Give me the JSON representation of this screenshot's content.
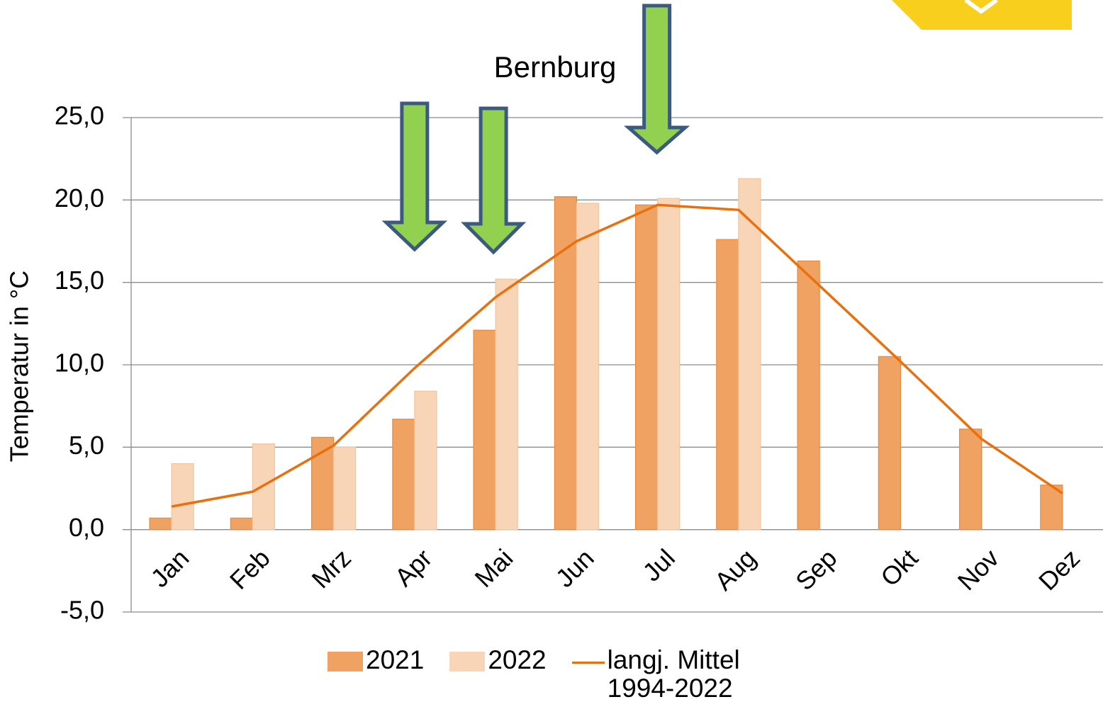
{
  "chart_data": {
    "type": "bar",
    "annotation": "Bernburg",
    "y_label": "Temperatur in °C",
    "categories": [
      "Jan",
      "Feb",
      "Mrz",
      "Apr",
      "Mai",
      "Jun",
      "Jul",
      "Aug",
      "Sep",
      "Okt",
      "Nov",
      "Dez"
    ],
    "series": [
      {
        "name": "2021",
        "type": "bar",
        "color": "#f0a262",
        "values": [
          0.7,
          0.7,
          5.6,
          6.7,
          12.1,
          20.2,
          19.7,
          17.6,
          16.3,
          10.5,
          6.1,
          2.7
        ]
      },
      {
        "name": "2022",
        "type": "bar",
        "color": "#f9d5b8",
        "values": [
          4.0,
          5.2,
          5.0,
          8.4,
          15.2,
          19.8,
          20.1,
          21.3,
          null,
          null,
          null,
          null
        ]
      },
      {
        "name": "langj. Mittel\n1994-2022",
        "type": "line",
        "color": "#e8700f",
        "values": [
          1.4,
          2.3,
          5.1,
          9.8,
          14.1,
          17.5,
          19.7,
          19.4,
          14.8,
          10.2,
          5.5,
          2.2
        ]
      }
    ],
    "ylim": [
      -5,
      25
    ],
    "yticks": [
      {
        "value": -5,
        "label": "-5,0"
      },
      {
        "value": 0,
        "label": "0,0"
      },
      {
        "value": 5,
        "label": "5,0"
      },
      {
        "value": 10,
        "label": "10,0"
      },
      {
        "value": 15,
        "label": "15,0"
      },
      {
        "value": 20,
        "label": "20,0"
      },
      {
        "value": 25,
        "label": "25,0"
      }
    ],
    "grid": true
  }
}
